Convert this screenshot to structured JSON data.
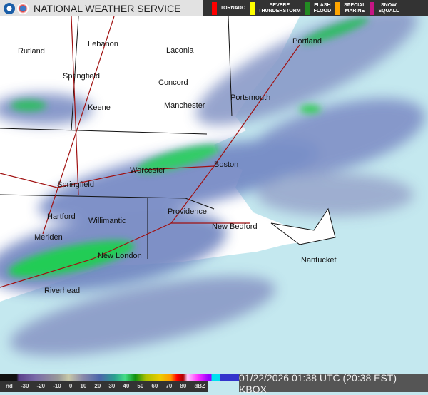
{
  "header": {
    "title": "NATIONAL WEATHER SERVICE",
    "warnings": [
      {
        "label": "TORNADO",
        "color": "#ff0000"
      },
      {
        "label": "SEVERE\nTHUNDERSTORM",
        "color": "#ffff00"
      },
      {
        "label": "FLASH\nFLOOD",
        "color": "#228b22"
      },
      {
        "label": "SPECIAL\nMARINE",
        "color": "#ffa500"
      },
      {
        "label": "SNOW\nSQUALL",
        "color": "#c71585"
      }
    ]
  },
  "cities": [
    "Rutland",
    "Lebanon",
    "Laconia",
    "Springfield",
    "Concord",
    "Portsmouth",
    "Portland",
    "Keene",
    "Manchester",
    "Worcester",
    "Boston",
    "Springfield",
    "Hartford",
    "Willimantic",
    "Providence",
    "New Bedford",
    "Meriden",
    "New London",
    "Nantucket",
    "Riverhead"
  ],
  "legend": {
    "ticks": [
      "nd",
      "-30",
      "-20",
      "-10",
      "0",
      "10",
      "20",
      "30",
      "40",
      "50",
      "60",
      "70",
      "80",
      "dBZ"
    ]
  },
  "timestamp": "01/22/2026 01:38 UTC (20:38 EST) KBOX"
}
